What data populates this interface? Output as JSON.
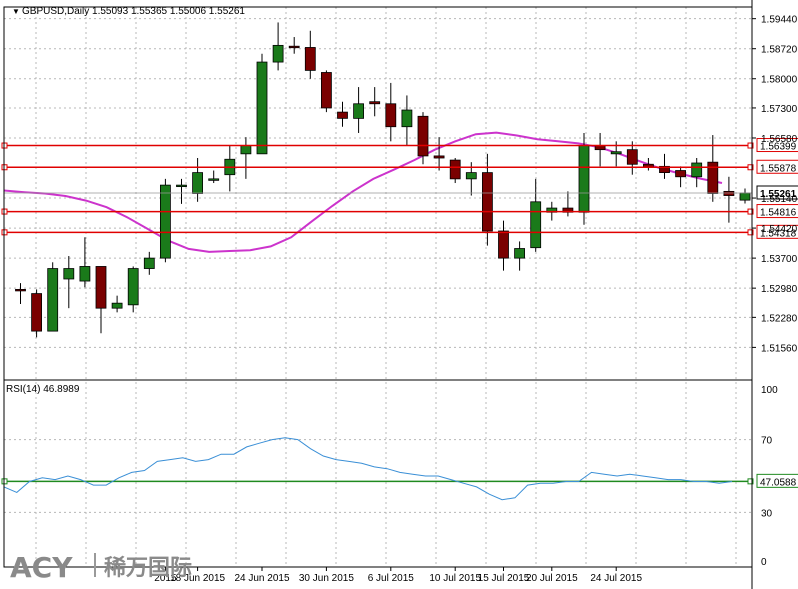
{
  "header": {
    "arrow_glyph": "▼",
    "title": "GBPUSD,Daily  1.55093 1.55365 1.55006 1.55261"
  },
  "rsi": {
    "label": "RSI(14) 46.8989",
    "scale_ticks": [
      "100",
      "70",
      "30",
      "0"
    ],
    "level_label": "47.0588",
    "level": 47.0588,
    "line_color": "#3a8fd6",
    "level_color": "#1f8a1f"
  },
  "watermark": {
    "brand": "ACY",
    "chinese": "稀万国际"
  },
  "colors": {
    "bull": "#1a7a1a",
    "bear": "#7a0000",
    "ma": "#cc33cc",
    "sr": "#e00000",
    "grid": "#b8b8b8"
  },
  "chart_data": [
    {
      "type": "candlestick",
      "symbol": "GBPUSD",
      "timeframe": "Daily",
      "current_price": 1.55261,
      "current_price_label": "1.55261",
      "ylim": [
        1.5085,
        1.5972
      ],
      "y_ticks": [
        "1.59440",
        "1.58720",
        "1.58000",
        "1.57300",
        "1.56580",
        "1.55140",
        "1.54420",
        "1.53700",
        "1.52980",
        "1.52280",
        "1.51560"
      ],
      "x_ticks": [
        {
          "label": "2015",
          "index": 9
        },
        {
          "label": "18 Jun 2015",
          "index": 11
        },
        {
          "label": "24 Jun 2015",
          "index": 15
        },
        {
          "label": "30 Jun 2015",
          "index": 19
        },
        {
          "label": "6 Jul 2015",
          "index": 23
        },
        {
          "label": "10 Jul 2015",
          "index": 27
        },
        {
          "label": "15 Jul 2015",
          "index": 30
        },
        {
          "label": "20 Jul 2015",
          "index": 33
        },
        {
          "label": "24 Jul 2015",
          "index": 37
        }
      ],
      "horizontal_levels": [
        1.56399,
        1.55878,
        1.54816,
        1.54318
      ],
      "horizontal_level_labels": [
        "1.56399",
        "1.55878",
        "1.54816",
        "1.54318"
      ],
      "candles": [
        {
          "o": 1.5295,
          "h": 1.531,
          "l": 1.526,
          "c": 1.5292
        },
        {
          "o": 1.5285,
          "h": 1.5295,
          "l": 1.518,
          "c": 1.5195
        },
        {
          "o": 1.5195,
          "h": 1.536,
          "l": 1.5195,
          "c": 1.5345
        },
        {
          "o": 1.532,
          "h": 1.5375,
          "l": 1.525,
          "c": 1.5345
        },
        {
          "o": 1.5315,
          "h": 1.542,
          "l": 1.53,
          "c": 1.535
        },
        {
          "o": 1.535,
          "h": 1.535,
          "l": 1.519,
          "c": 1.525
        },
        {
          "o": 1.525,
          "h": 1.528,
          "l": 1.524,
          "c": 1.5262
        },
        {
          "o": 1.5258,
          "h": 1.535,
          "l": 1.524,
          "c": 1.5345
        },
        {
          "o": 1.5345,
          "h": 1.5385,
          "l": 1.533,
          "c": 1.537
        },
        {
          "o": 1.537,
          "h": 1.556,
          "l": 1.536,
          "c": 1.5545
        },
        {
          "o": 1.5545,
          "h": 1.556,
          "l": 1.55,
          "c": 1.5545
        },
        {
          "o": 1.5525,
          "h": 1.561,
          "l": 1.5505,
          "c": 1.5575
        },
        {
          "o": 1.556,
          "h": 1.558,
          "l": 1.555,
          "c": 1.556
        },
        {
          "o": 1.557,
          "h": 1.564,
          "l": 1.553,
          "c": 1.5607
        },
        {
          "o": 1.562,
          "h": 1.566,
          "l": 1.556,
          "c": 1.564
        },
        {
          "o": 1.562,
          "h": 1.586,
          "l": 1.562,
          "c": 1.584
        },
        {
          "o": 1.584,
          "h": 1.5935,
          "l": 1.582,
          "c": 1.588
        },
        {
          "o": 1.5878,
          "h": 1.59,
          "l": 1.586,
          "c": 1.5875
        },
        {
          "o": 1.5875,
          "h": 1.5915,
          "l": 1.58,
          "c": 1.582
        },
        {
          "o": 1.5815,
          "h": 1.582,
          "l": 1.572,
          "c": 1.573
        },
        {
          "o": 1.572,
          "h": 1.5745,
          "l": 1.5685,
          "c": 1.5705
        },
        {
          "o": 1.5705,
          "h": 1.578,
          "l": 1.567,
          "c": 1.574
        },
        {
          "o": 1.5745,
          "h": 1.578,
          "l": 1.571,
          "c": 1.574
        },
        {
          "o": 1.574,
          "h": 1.579,
          "l": 1.565,
          "c": 1.5685
        },
        {
          "o": 1.5685,
          "h": 1.576,
          "l": 1.564,
          "c": 1.5725
        },
        {
          "o": 1.571,
          "h": 1.572,
          "l": 1.5595,
          "c": 1.5615
        },
        {
          "o": 1.5615,
          "h": 1.566,
          "l": 1.558,
          "c": 1.561
        },
        {
          "o": 1.5605,
          "h": 1.561,
          "l": 1.555,
          "c": 1.556
        },
        {
          "o": 1.556,
          "h": 1.56,
          "l": 1.552,
          "c": 1.5575
        },
        {
          "o": 1.5575,
          "h": 1.562,
          "l": 1.54,
          "c": 1.5435
        },
        {
          "o": 1.5435,
          "h": 1.546,
          "l": 1.534,
          "c": 1.537
        },
        {
          "o": 1.537,
          "h": 1.541,
          "l": 1.534,
          "c": 1.5393
        },
        {
          "o": 1.5395,
          "h": 1.556,
          "l": 1.5385,
          "c": 1.5505
        },
        {
          "o": 1.548,
          "h": 1.5505,
          "l": 1.546,
          "c": 1.549
        },
        {
          "o": 1.549,
          "h": 1.553,
          "l": 1.547,
          "c": 1.548
        },
        {
          "o": 1.548,
          "h": 1.567,
          "l": 1.545,
          "c": 1.564
        },
        {
          "o": 1.564,
          "h": 1.567,
          "l": 1.559,
          "c": 1.563
        },
        {
          "o": 1.562,
          "h": 1.565,
          "l": 1.559,
          "c": 1.5625
        },
        {
          "o": 1.563,
          "h": 1.565,
          "l": 1.557,
          "c": 1.5595
        },
        {
          "o": 1.5595,
          "h": 1.561,
          "l": 1.558,
          "c": 1.5588
        },
        {
          "o": 1.559,
          "h": 1.562,
          "l": 1.556,
          "c": 1.5575
        },
        {
          "o": 1.558,
          "h": 1.559,
          "l": 1.554,
          "c": 1.5565
        },
        {
          "o": 1.5565,
          "h": 1.561,
          "l": 1.554,
          "c": 1.5598
        },
        {
          "o": 1.56,
          "h": 1.5665,
          "l": 1.5505,
          "c": 1.5525
        },
        {
          "o": 1.553,
          "h": 1.5565,
          "l": 1.5455,
          "c": 1.552
        },
        {
          "o": 1.5509,
          "h": 1.5537,
          "l": 1.5501,
          "c": 1.5526
        }
      ],
      "moving_average": [
        1.5532,
        1.5528,
        1.5525,
        1.5519,
        1.5508,
        1.5492,
        1.5468,
        1.544,
        1.5412,
        1.5392,
        1.5385,
        1.5387,
        1.5389,
        1.5398,
        1.542,
        1.5458,
        1.5495,
        1.553,
        1.556,
        1.5582,
        1.5605,
        1.563,
        1.565,
        1.5667,
        1.5671,
        1.5664,
        1.5655,
        1.565,
        1.5645,
        1.5636,
        1.562,
        1.5602,
        1.5585,
        1.5572,
        1.556,
        1.555
      ],
      "ma_start_index": 0
    },
    {
      "type": "line",
      "name": "RSI(14)",
      "ylim": [
        0,
        100
      ],
      "y_ticks": [
        100,
        70,
        30,
        0
      ],
      "level": 47.0588,
      "values": [
        44,
        41,
        47,
        49,
        48,
        50,
        48,
        45,
        45,
        49,
        52,
        53,
        58,
        59,
        60,
        58,
        59,
        62,
        62,
        66,
        68,
        70,
        71,
        70,
        65,
        61,
        59,
        58,
        57,
        55,
        54,
        52,
        51,
        50,
        50,
        48,
        46,
        44,
        40,
        37,
        38,
        45,
        46,
        46,
        47,
        47,
        52,
        51,
        50,
        51,
        50,
        49,
        48,
        48,
        47,
        47,
        46,
        47
      ]
    }
  ]
}
